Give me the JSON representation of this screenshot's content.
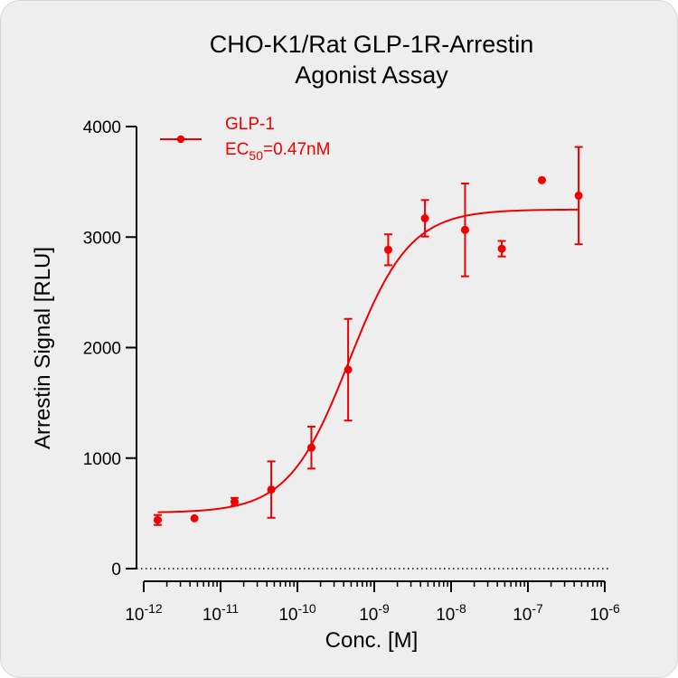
{
  "chart_data": {
    "type": "scatter",
    "title_lines": [
      "CHO-K1/Rat GLP-1R-Arrestin",
      "Agonist Assay"
    ],
    "xlabel": "Conc. [M]",
    "ylabel": "Arrestin Signal [RLU]",
    "x_scale": "log",
    "xlim": [
      1e-12,
      1e-06
    ],
    "ylim": [
      0,
      4000
    ],
    "x_ticks": [
      {
        "base": "10",
        "exp": "-12",
        "value": 1e-12
      },
      {
        "base": "10",
        "exp": "-11",
        "value": 1e-11
      },
      {
        "base": "10",
        "exp": "-10",
        "value": 1e-10
      },
      {
        "base": "10",
        "exp": "-9",
        "value": 1e-09
      },
      {
        "base": "10",
        "exp": "-8",
        "value": 1e-08
      },
      {
        "base": "10",
        "exp": "-7",
        "value": 1e-07
      },
      {
        "base": "10",
        "exp": "-6",
        "value": 1e-06
      }
    ],
    "y_ticks": [
      {
        "label": "0",
        "value": 0
      },
      {
        "label": "1000",
        "value": 1000
      },
      {
        "label": "2000",
        "value": 2000
      },
      {
        "label": "3000",
        "value": 3000
      },
      {
        "label": "4000",
        "value": 4000
      }
    ],
    "grid": false,
    "baseline": {
      "y": 0,
      "style": "dotted"
    },
    "legend": {
      "position": "top-left",
      "entries": [
        {
          "series_name": "GLP-1",
          "ec_prefix": "EC",
          "ec_sub": "50",
          "ec_suffix": "=0.47nM"
        }
      ]
    },
    "series": [
      {
        "name": "GLP-1",
        "color": "#ee0000",
        "points": [
          {
            "x": 1.52e-12,
            "y": 440,
            "err": 45
          },
          {
            "x": 4.57e-12,
            "y": 455,
            "err": 0
          },
          {
            "x": 1.52e-11,
            "y": 605,
            "err": 35
          },
          {
            "x": 4.57e-11,
            "y": 715,
            "err": 255
          },
          {
            "x": 1.52e-10,
            "y": 1095,
            "err": 190
          },
          {
            "x": 4.57e-10,
            "y": 1800,
            "err": 460
          },
          {
            "x": 1.52e-09,
            "y": 2885,
            "err": 140
          },
          {
            "x": 4.57e-09,
            "y": 3170,
            "err": 165
          },
          {
            "x": 1.52e-08,
            "y": 3065,
            "err": 420
          },
          {
            "x": 4.57e-08,
            "y": 2895,
            "err": 70
          },
          {
            "x": 1.52e-07,
            "y": 3515,
            "err": 0
          },
          {
            "x": 4.57e-07,
            "y": 3375,
            "err": 440
          }
        ],
        "fit": {
          "model": "4PL",
          "bottom": 505,
          "top": 3250,
          "ec50": 4.7e-10,
          "hill": 1.1
        }
      }
    ]
  }
}
